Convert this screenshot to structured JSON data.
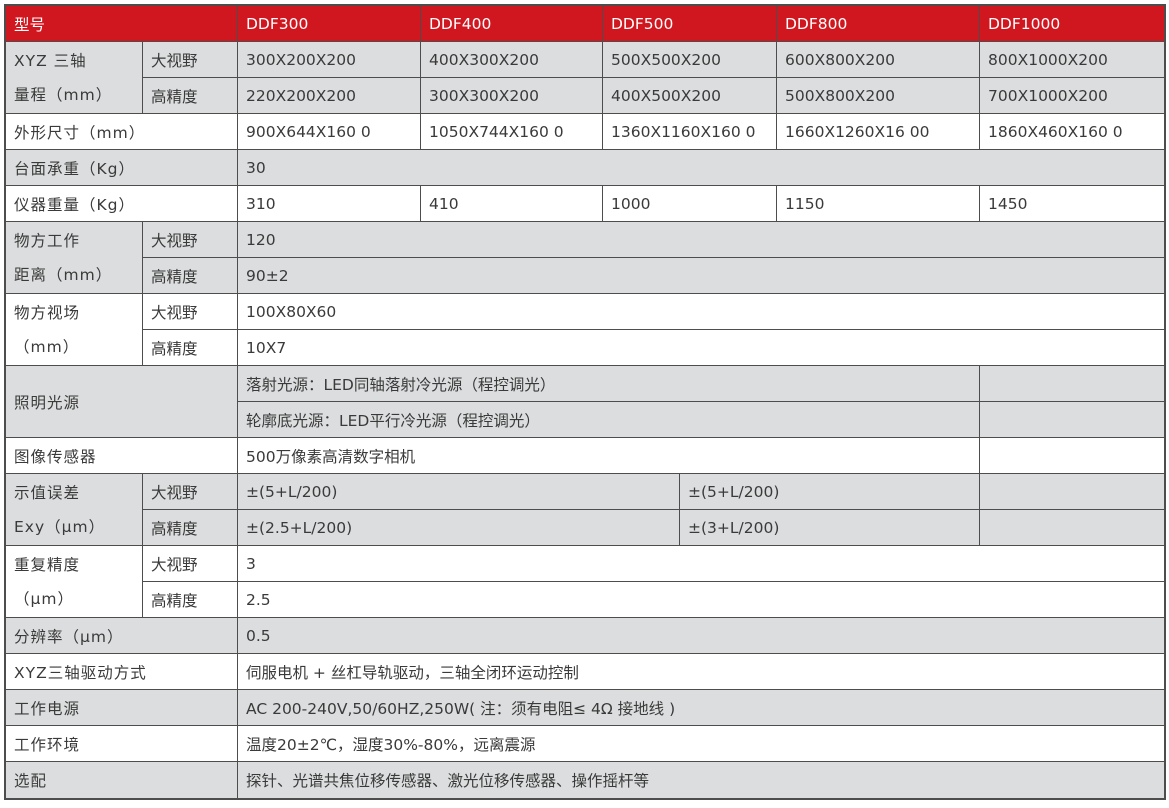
{
  "colors": {
    "header_red": "#d0161e",
    "row_gray": "#dcddde",
    "border": "#4d4d4d",
    "text": "#3a3a3a",
    "header_text": "#ffffff"
  },
  "table": {
    "header": {
      "model_col_label": "型号",
      "models": [
        "DDF300",
        "DDF400",
        "DDF500",
        "DDF800",
        "DDF1000"
      ]
    },
    "fov_labels": {
      "large": "大视野",
      "high": "高精度"
    },
    "xyz_range": {
      "label": "XYZ 三轴\n量程（mm）",
      "large_fov": [
        "300X200X200",
        "400X300X200",
        "500X500X200",
        "600X800X200",
        "800X1000X200"
      ],
      "high_precision": [
        "220X200X200",
        "300X300X200",
        "400X500X200",
        "500X800X200",
        "700X1000X200"
      ]
    },
    "dimensions": {
      "label": "外形尺寸（mm）",
      "values": [
        "900X644X160 0",
        "1050X744X160 0",
        "1360X1160X160 0",
        "1660X1260X16 00",
        "1860X460X160 0"
      ]
    },
    "table_load": {
      "label": "台面承重（Kg）",
      "value": "30"
    },
    "instrument_weight": {
      "label": "仪器重量（Kg）",
      "values": [
        "310",
        "410",
        "1000",
        "1150",
        "1450"
      ]
    },
    "working_distance": {
      "label": "物方工作\n距离（mm）",
      "large_fov": "120",
      "high_precision": "90±2"
    },
    "object_fov": {
      "label": "物方视场\n（mm）",
      "large_fov": "100X80X60",
      "high_precision": "10X7"
    },
    "illumination": {
      "label": "照明光源",
      "epi_light": "落射光源：LED同轴落射冷光源（程控调光）",
      "profile_light": "轮廓底光源：LED平行冷光源（程控调光）"
    },
    "image_sensor": {
      "label": "图像传感器",
      "value": "500万像素高清数字相机"
    },
    "indication_error": {
      "label": "示值误差\nExy（μm）",
      "large_fov": [
        "±(5+L/200)",
        "±(5+L/200)"
      ],
      "high_precision": [
        "±(2.5+L/200)",
        "±(3+L/200)"
      ]
    },
    "repeatability": {
      "label": "重复精度\n（μm）",
      "large_fov": "3",
      "high_precision": "2.5"
    },
    "resolution": {
      "label": "分辨率（μm）",
      "value": "0.5"
    },
    "drive_mode": {
      "label": "XYZ三轴驱动方式",
      "value": "伺服电机 + 丝杠导轨驱动，三轴全闭环运动控制"
    },
    "power": {
      "label": "工作电源",
      "value": "AC 200-240V,50/60HZ,250W( 注：须有电阻≤ 4Ω 接地线 )"
    },
    "environment": {
      "label": "工作环境",
      "value": "温度20±2℃，湿度30%-80%，远离震源"
    },
    "options": {
      "label": "选配",
      "value": "探针、光谱共焦位移传感器、激光位移传感器、操作摇杆等"
    }
  }
}
